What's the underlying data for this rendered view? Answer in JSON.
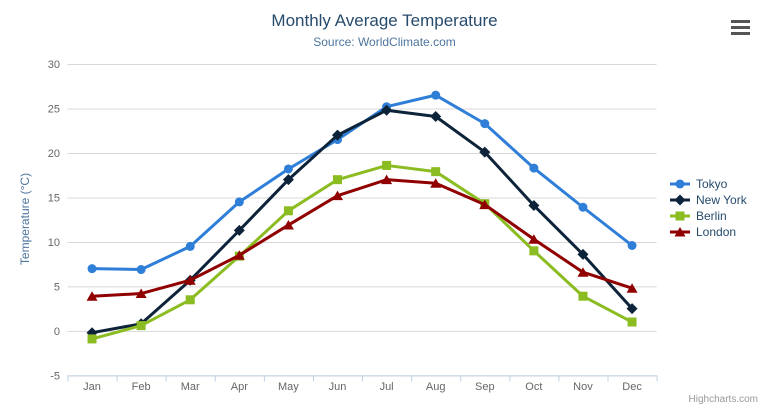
{
  "header": {
    "title": "Monthly Average Temperature",
    "subtitle": "Source: WorldClimate.com"
  },
  "menu": {
    "icon": "hamburger-menu"
  },
  "credits": {
    "label": "Highcharts.com"
  },
  "colors": {
    "title": "#274b6d",
    "subtitle": "#4d759e",
    "legend_text": "#274b6d",
    "axis_labels": "#666666",
    "axis_line": "#c0d0e0",
    "gridline": "#d8d8d8",
    "y_axis_title": "#4d759e",
    "credits": "#999999",
    "menu_icon": "#555555"
  },
  "chart_data": {
    "type": "line",
    "title": "Monthly Average Temperature",
    "subtitle": "Source: WorldClimate.com",
    "categories": [
      "Jan",
      "Feb",
      "Mar",
      "Apr",
      "May",
      "Jun",
      "Jul",
      "Aug",
      "Sep",
      "Oct",
      "Nov",
      "Dec"
    ],
    "xlabel": "",
    "ylabel": "Temperature (°C)",
    "ylim": [
      -5,
      30
    ],
    "yticks": [
      -5,
      0,
      5,
      10,
      15,
      20,
      25,
      30
    ],
    "grid": true,
    "legend_position": "right",
    "series": [
      {
        "name": "Tokyo",
        "color": "#2f7ed8",
        "marker": "circle",
        "values": [
          7.0,
          6.9,
          9.5,
          14.5,
          18.2,
          21.5,
          25.2,
          26.5,
          23.3,
          18.3,
          13.9,
          9.6
        ]
      },
      {
        "name": "New York",
        "color": "#0d233a",
        "marker": "diamond",
        "values": [
          -0.2,
          0.8,
          5.7,
          11.3,
          17.0,
          22.0,
          24.8,
          24.1,
          20.1,
          14.1,
          8.6,
          2.5
        ]
      },
      {
        "name": "Berlin",
        "color": "#8bbc21",
        "marker": "square",
        "values": [
          -0.9,
          0.6,
          3.5,
          8.4,
          13.5,
          17.0,
          18.6,
          17.9,
          14.3,
          9.0,
          3.9,
          1.0
        ]
      },
      {
        "name": "London",
        "color": "#910000",
        "marker": "triangle",
        "values": [
          3.9,
          4.2,
          5.7,
          8.5,
          11.9,
          15.2,
          17.0,
          16.6,
          14.2,
          10.3,
          6.6,
          4.8
        ]
      }
    ]
  }
}
